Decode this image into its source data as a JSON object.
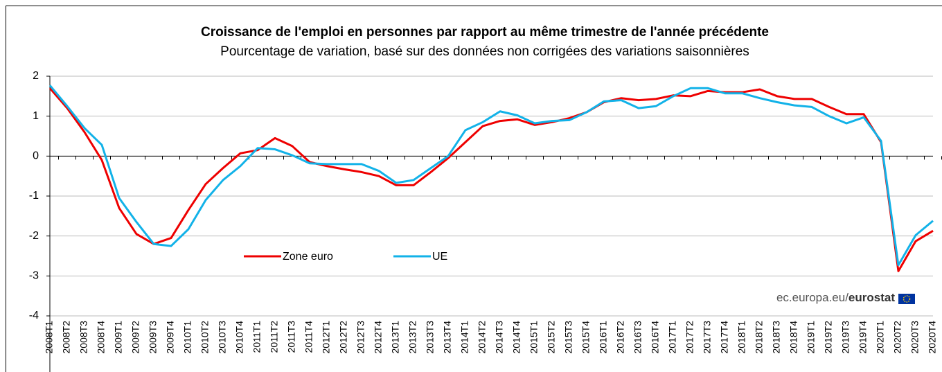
{
  "chart_data": {
    "type": "line",
    "title": "Croissance  de l'emploi en personnes par rapport au même trimestre de l'année précédente",
    "subtitle": "Pourcentage de variation,  basé sur des données non corrigées des variations  saisonnières",
    "source": [
      "ec.europa.eu/",
      "eurostat"
    ],
    "categories": [
      "2008T1",
      "2008T2",
      "2008T3",
      "2008T4",
      "2009T1",
      "2009T2",
      "2009T3",
      "2009T4",
      "2010T1",
      "2010T2",
      "2010T3",
      "2010T4",
      "2011T1",
      "2011T2",
      "2011T3",
      "2011T4",
      "2012T1",
      "2012T2",
      "2012T3",
      "2012T4",
      "2013T1",
      "2013T2",
      "2013T3",
      "2013T4",
      "2014T1",
      "2014T2",
      "2014T3",
      "2014T4",
      "2015T1",
      "2015T2",
      "2015T3",
      "2015T4",
      "2016T1",
      "2016T2",
      "2016T3",
      "2016T4",
      "2017T1",
      "2017T2",
      "2017T3",
      "2017T4",
      "2018T1",
      "2018T2",
      "2018T3",
      "2018T4",
      "2019T1",
      "2019T2",
      "2019T3",
      "2019T4",
      "2020T1",
      "2020T2",
      "2020T3",
      "2020T4"
    ],
    "series": [
      {
        "name": "Zone euro",
        "color": "#ee0000",
        "values": [
          1.7,
          1.2,
          0.6,
          -0.1,
          -1.3,
          -1.95,
          -2.2,
          -2.05,
          -1.35,
          -0.7,
          -0.3,
          0.07,
          0.15,
          0.45,
          0.25,
          -0.15,
          -0.25,
          -0.33,
          -0.4,
          -0.5,
          -0.73,
          -0.73,
          -0.4,
          -0.05,
          0.35,
          0.75,
          0.88,
          0.92,
          0.78,
          0.85,
          0.95,
          1.1,
          1.35,
          1.45,
          1.4,
          1.43,
          1.52,
          1.5,
          1.63,
          1.6,
          1.6,
          1.67,
          1.5,
          1.43,
          1.43,
          1.23,
          1.05,
          1.05,
          0.35,
          -2.88,
          -2.13,
          -1.87
        ]
      },
      {
        "name": "UE",
        "color": "#12b2e8",
        "values": [
          1.77,
          1.25,
          0.7,
          0.28,
          -1.05,
          -1.65,
          -2.2,
          -2.25,
          -1.83,
          -1.1,
          -0.6,
          -0.25,
          0.2,
          0.17,
          0.02,
          -0.18,
          -0.2,
          -0.2,
          -0.2,
          -0.37,
          -0.67,
          -0.6,
          -0.3,
          0.0,
          0.65,
          0.85,
          1.12,
          1.02,
          0.82,
          0.88,
          0.9,
          1.1,
          1.37,
          1.4,
          1.2,
          1.25,
          1.5,
          1.7,
          1.7,
          1.57,
          1.57,
          1.45,
          1.35,
          1.27,
          1.23,
          1.0,
          0.82,
          0.97,
          0.38,
          -2.73,
          -1.98,
          -1.62
        ]
      }
    ],
    "ylim": [
      -4,
      2
    ],
    "yticks": [
      -4,
      -3,
      -2,
      -1,
      0,
      1,
      2
    ],
    "grid": true
  }
}
